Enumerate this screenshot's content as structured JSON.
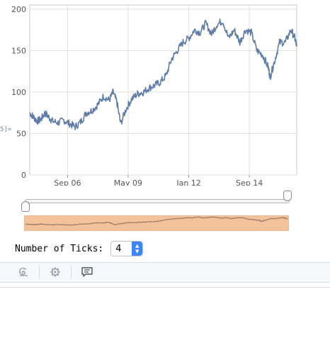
{
  "cell_label": "5]=",
  "chart_data": {
    "type": "line",
    "title": "",
    "xlabel": "",
    "ylabel": "",
    "ylim": [
      0,
      200
    ],
    "yticks": [
      "0",
      "50",
      "100",
      "150",
      "200"
    ],
    "xticks": [
      "Sep 06",
      "May 09",
      "Jan 12",
      "Sep 14"
    ],
    "x_tick_dates": [
      "2006-09-01",
      "2009-05-01",
      "2012-01-01",
      "2014-09-01"
    ],
    "grid": true,
    "line_color": "#5f7ca8",
    "series": [
      {
        "x": [
          "2005-01-01",
          "2005-03-01",
          "2005-05-01",
          "2005-07-01",
          "2005-09-01",
          "2005-11-01",
          "2006-01-01",
          "2006-04-01",
          "2006-07-01",
          "2006-10-01",
          "2007-01-01",
          "2007-04-01",
          "2007-07-01",
          "2007-10-01",
          "2008-01-01",
          "2008-04-01",
          "2008-07-01",
          "2008-09-01",
          "2008-11-01",
          "2009-01-01",
          "2009-04-01",
          "2009-07-01",
          "2009-10-01",
          "2010-01-01",
          "2010-04-01",
          "2010-07-01",
          "2010-10-01",
          "2011-01-01",
          "2011-04-01",
          "2011-07-01",
          "2011-10-01",
          "2012-01-01",
          "2012-04-01",
          "2012-07-01",
          "2012-10-01",
          "2013-01-01",
          "2013-04-01",
          "2013-07-01",
          "2013-10-01",
          "2014-01-01",
          "2014-04-01",
          "2014-07-01",
          "2014-10-01",
          "2015-01-01",
          "2015-04-01",
          "2015-07-01",
          "2015-08-01",
          "2015-10-01",
          "2016-01-01",
          "2016-04-01",
          "2016-07-01",
          "2016-09-01",
          "2016-10-01"
        ],
        "y": [
          75,
          70,
          65,
          67,
          75,
          70,
          65,
          63,
          66,
          62,
          58,
          64,
          75,
          78,
          85,
          95,
          90,
          100,
          88,
          62,
          80,
          92,
          98,
          100,
          105,
          108,
          112,
          120,
          140,
          150,
          160,
          165,
          175,
          172,
          183,
          170,
          182,
          186,
          165,
          175,
          160,
          175,
          172,
          150,
          145,
          130,
          118,
          135,
          160,
          160,
          175,
          165,
          155
        ]
      }
    ]
  },
  "range_slider": {
    "low": 0.0,
    "high": 1.0
  },
  "overview": {
    "band_color": "#f3c29b",
    "line_color": "#9a7a6a"
  },
  "controls": {
    "ticks_label": "Number of Ticks:",
    "ticks_value": "4"
  },
  "toolbar": {
    "icons": [
      "swirl-icon",
      "gear-icon",
      "comment-icon"
    ]
  }
}
